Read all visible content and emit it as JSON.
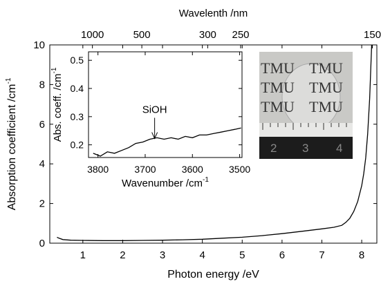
{
  "chart_data": [
    {
      "type": "line",
      "xlabel": "Photon energy /eV",
      "ylabel": "Absorption coefficient /cm",
      "ylabel_sup": "-1",
      "x2label": "Wavelenth /nm",
      "xlim": [
        0.17,
        8.38
      ],
      "xticks": [
        1,
        2,
        3,
        4,
        5,
        6,
        7,
        8
      ],
      "ylim": [
        0,
        10
      ],
      "yticks": [
        0,
        2,
        4,
        6,
        8,
        10
      ],
      "x2lim": [
        7294,
        148
      ],
      "x2scale": "reciprocal",
      "x2ticks": [
        1000,
        500,
        300,
        250,
        150
      ],
      "series": [
        {
          "color": "#000000",
          "x": [
            0.35,
            0.4,
            0.5,
            0.7,
            1,
            1.5,
            2,
            2.5,
            3,
            3.5,
            4,
            4.5,
            5,
            5.5,
            6,
            6.5,
            7,
            7.3,
            7.5,
            7.6,
            7.7,
            7.8,
            7.9,
            8.0,
            8.05,
            8.1,
            8.15,
            8.2,
            8.25
          ],
          "values": [
            0.3,
            0.25,
            0.18,
            0.15,
            0.14,
            0.13,
            0.13,
            0.14,
            0.15,
            0.17,
            0.2,
            0.25,
            0.3,
            0.38,
            0.48,
            0.6,
            0.72,
            0.8,
            0.9,
            1.05,
            1.25,
            1.6,
            2.1,
            2.9,
            3.5,
            4.3,
            5.5,
            7.3,
            10
          ]
        }
      ]
    },
    {
      "type": "line",
      "xlabel": "Wavenumber /cm",
      "xlabel_sup": "-1",
      "ylabel": "Abs. coeff. /cm",
      "ylabel_sup": "-1",
      "xlim": [
        3820,
        3495
      ],
      "xticks": [
        3800,
        3700,
        3600,
        3500
      ],
      "ylim": [
        0.155,
        0.53
      ],
      "yticks": [
        0.2,
        0.3,
        0.4,
        0.5
      ],
      "annotation": {
        "text": "SiOH",
        "x": 3680,
        "y": 0.215
      },
      "series": [
        {
          "color": "#000000",
          "x": [
            3810,
            3795,
            3780,
            3765,
            3750,
            3735,
            3720,
            3705,
            3690,
            3675,
            3660,
            3645,
            3630,
            3615,
            3600,
            3585,
            3570,
            3555,
            3540,
            3525,
            3510,
            3497
          ],
          "values": [
            0.17,
            0.16,
            0.175,
            0.17,
            0.18,
            0.19,
            0.205,
            0.21,
            0.22,
            0.225,
            0.22,
            0.225,
            0.22,
            0.23,
            0.225,
            0.235,
            0.235,
            0.24,
            0.245,
            0.25,
            0.255,
            0.26
          ]
        }
      ]
    }
  ],
  "photo": {
    "watermark": "TMU",
    "ruler_labels": [
      "2",
      "3",
      "4"
    ]
  }
}
